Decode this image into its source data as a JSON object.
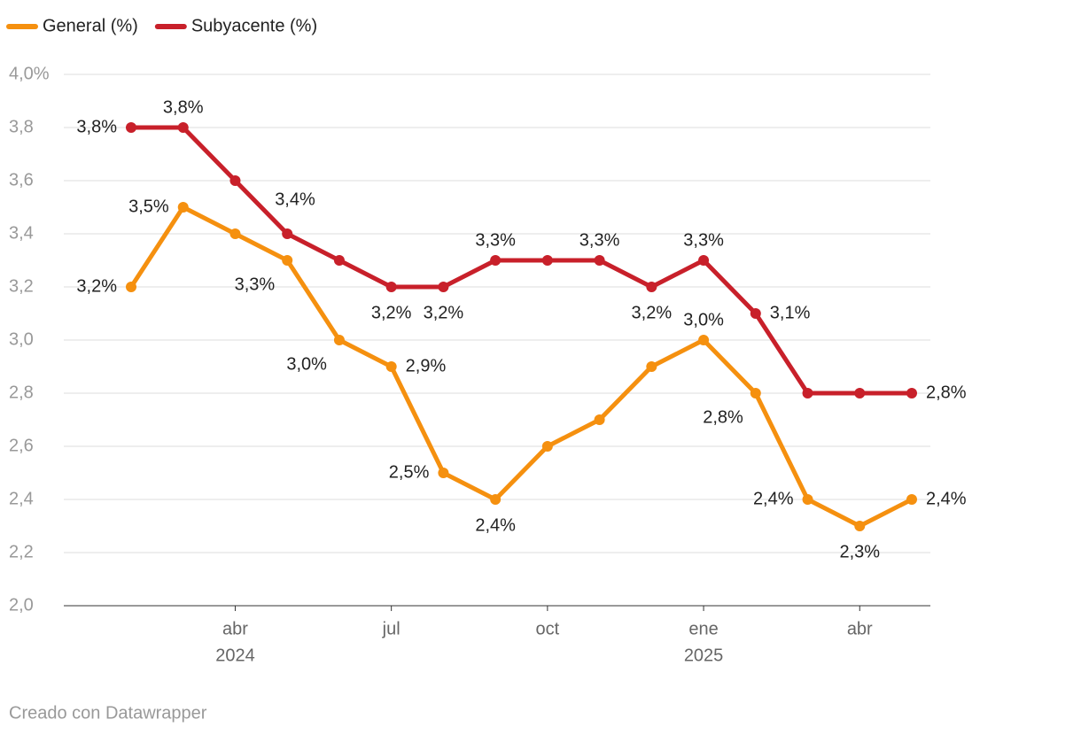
{
  "chart_data": {
    "type": "line",
    "x": [
      "2024-02",
      "2024-03",
      "2024-04",
      "2024-05",
      "2024-06",
      "2024-07",
      "2024-08",
      "2024-09",
      "2024-10",
      "2024-11",
      "2024-12",
      "2025-01",
      "2025-02",
      "2025-03",
      "2025-04",
      "2025-05"
    ],
    "series": [
      {
        "name": "General (%)",
        "color": "#f5900f",
        "values": [
          3.2,
          3.5,
          3.4,
          3.3,
          3.0,
          2.9,
          2.5,
          2.4,
          2.6,
          2.7,
          2.9,
          3.0,
          2.8,
          2.4,
          2.3,
          2.4
        ],
        "value_labels": [
          "3,2%",
          "3,5%",
          null,
          "3,3%",
          "3,0%",
          "2,9%",
          "2,5%",
          "2,4%",
          null,
          null,
          null,
          "3,0%",
          "2,8%",
          "2,4%",
          "2,3%",
          "2,4%"
        ]
      },
      {
        "name": "Subyacente (%)",
        "color": "#c8202a",
        "values": [
          3.8,
          3.8,
          3.6,
          3.4,
          3.3,
          3.2,
          3.2,
          3.3,
          3.3,
          3.3,
          3.2,
          3.3,
          3.1,
          2.8,
          2.8,
          2.8
        ],
        "value_labels": [
          "3,8%",
          "3,8%",
          null,
          "3,4%",
          null,
          "3,2%",
          "3,2%",
          "3,3%",
          null,
          "3,3%",
          "3,2%",
          "3,3%",
          "3,1%",
          null,
          null,
          "2,8%"
        ]
      }
    ],
    "ylim": [
      2.0,
      4.0
    ],
    "yticks": [
      {
        "value": 2.0,
        "label": "2,0"
      },
      {
        "value": 2.2,
        "label": "2,2"
      },
      {
        "value": 2.4,
        "label": "2,4"
      },
      {
        "value": 2.6,
        "label": "2,6"
      },
      {
        "value": 2.8,
        "label": "2,8"
      },
      {
        "value": 3.0,
        "label": "3,0"
      },
      {
        "value": 3.2,
        "label": "3,2"
      },
      {
        "value": 3.4,
        "label": "3,4"
      },
      {
        "value": 3.6,
        "label": "3,6"
      },
      {
        "value": 3.8,
        "label": "3,8"
      },
      {
        "value": 4.0,
        "label": "4,0%"
      }
    ],
    "xticks": [
      {
        "value": "2024-04",
        "label": "abr",
        "year": "2024"
      },
      {
        "value": "2024-07",
        "label": "jul"
      },
      {
        "value": "2024-10",
        "label": "oct"
      },
      {
        "value": "2025-01",
        "label": "ene",
        "year": "2025"
      },
      {
        "value": "2025-04",
        "label": "abr"
      }
    ],
    "grid": true,
    "legend": "top-left",
    "credit": "Creado con Datawrapper"
  }
}
